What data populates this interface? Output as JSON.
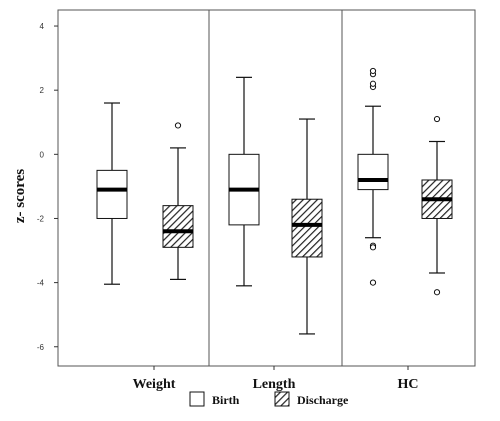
{
  "chart_data": {
    "type": "boxplot",
    "ylabel": "z- scores",
    "xlabel": "",
    "ylim": [
      -6.6,
      4.5
    ],
    "yticks": [
      -6,
      -4,
      -2,
      0,
      2,
      4
    ],
    "categories": [
      "Weight",
      "Length",
      "HC"
    ],
    "series": [
      {
        "name": "Birth",
        "pattern": "none",
        "boxes": [
          {
            "min": -4.05,
            "q1": -2.0,
            "median": -1.1,
            "q3": -0.5,
            "max": 1.6,
            "outliers": []
          },
          {
            "min": -4.1,
            "q1": -2.2,
            "median": -1.1,
            "q3": 0.0,
            "max": 2.4,
            "outliers": []
          },
          {
            "min": -2.6,
            "q1": -1.1,
            "median": -0.8,
            "q3": 0.0,
            "max": 1.5,
            "outliers": [
              2.1,
              2.2,
              2.5,
              2.6,
              -2.85,
              -2.9,
              -4.0
            ]
          }
        ]
      },
      {
        "name": "Discharge",
        "pattern": "hatched",
        "boxes": [
          {
            "min": -3.9,
            "q1": -2.9,
            "median": -2.4,
            "q3": -1.6,
            "max": 0.2,
            "outliers": [
              0.9
            ]
          },
          {
            "min": -5.6,
            "q1": -3.2,
            "median": -2.2,
            "q3": -1.4,
            "max": 1.1,
            "outliers": []
          },
          {
            "min": -3.7,
            "q1": -2.0,
            "median": -1.4,
            "q3": -0.8,
            "max": 0.4,
            "outliers": [
              1.1,
              -4.3
            ]
          }
        ]
      }
    ],
    "grid": false,
    "legend_position": "bottom"
  },
  "colors": {
    "frame": "#555555",
    "box_fill": "#ffffff",
    "hatch": "#222222",
    "median": "#000000"
  }
}
